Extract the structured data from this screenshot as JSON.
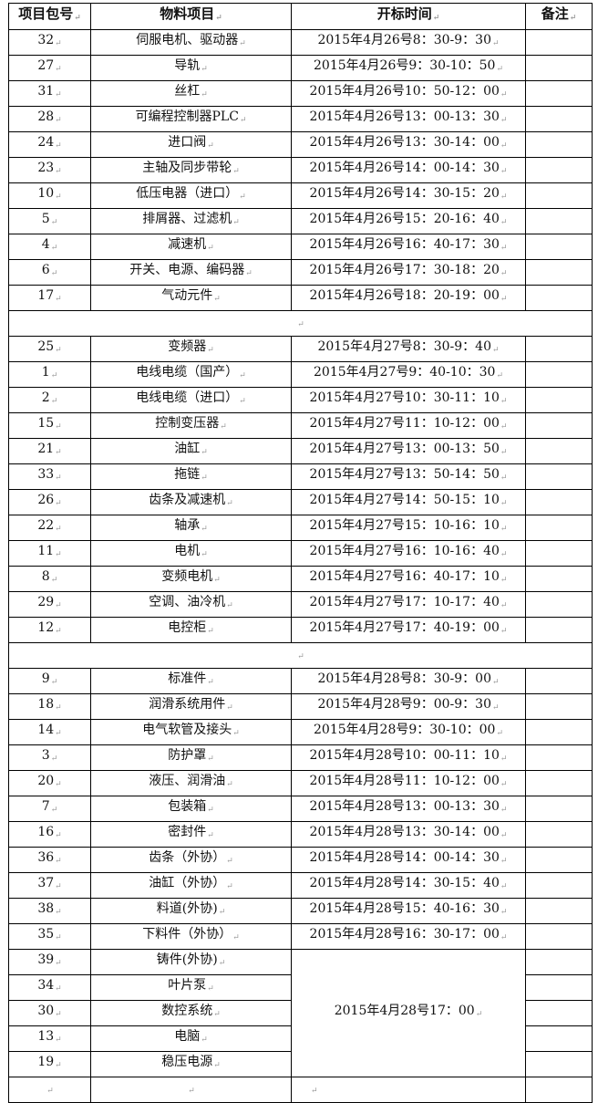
{
  "headers": [
    "项目包号",
    "物料项目",
    "开标时间",
    "备注"
  ],
  "groups": [
    {
      "rows": [
        {
          "no": "32",
          "item": "伺服电机、驱动器",
          "time": "2015年4月26号8：30-9：30"
        },
        {
          "no": "27",
          "item": "导轨",
          "time": "2015年4月26号9：30-10：50"
        },
        {
          "no": "31",
          "item": "丝杠",
          "time": "2015年4月26号10：50-12：00"
        },
        {
          "no": "28",
          "item": "可编程控制器PLC",
          "time": "2015年4月26号13：00-13：30"
        },
        {
          "no": "24",
          "item": "进口阀",
          "time": "2015年4月26号13：30-14：00"
        },
        {
          "no": "23",
          "item": "主轴及同步带轮",
          "time": "2015年4月26号14：00-14：30"
        },
        {
          "no": "10",
          "item": "低压电器（进口）",
          "time": "2015年4月26号14：30-15：20"
        },
        {
          "no": "5",
          "item": "排屑器、过滤机",
          "time": "2015年4月26号15：20-16：40"
        },
        {
          "no": "4",
          "item": "减速机",
          "time": "2015年4月26号16：40-17：30"
        },
        {
          "no": "6",
          "item": "开关、电源、编码器",
          "time": "2015年4月26号17：30-18：20"
        },
        {
          "no": "17",
          "item": "气动元件",
          "time": "2015年4月26号18：20-19：00"
        }
      ]
    },
    {
      "rows": [
        {
          "no": "25",
          "item": "变频器",
          "time": "2015年4月27号8：30-9：40"
        },
        {
          "no": "1",
          "item": "电线电缆（国产）",
          "time": "2015年4月27号9：40-10：30"
        },
        {
          "no": "2",
          "item": "电线电缆（进口）",
          "time": "2015年4月27号10：30-11：10"
        },
        {
          "no": "15",
          "item": "控制变压器",
          "time": "2015年4月27号11：10-12：00"
        },
        {
          "no": "21",
          "item": "油缸",
          "time": "2015年4月27号13：00-13：50"
        },
        {
          "no": "33",
          "item": "拖链",
          "time": "2015年4月27号13：50-14：50"
        },
        {
          "no": "26",
          "item": "齿条及减速机",
          "time": "2015年4月27号14：50-15：10"
        },
        {
          "no": "22",
          "item": "轴承",
          "time": "2015年4月27号15：10-16：10"
        },
        {
          "no": "11",
          "item": "电机",
          "time": "2015年4月27号16：10-16：40"
        },
        {
          "no": "8",
          "item": "变频电机",
          "time": "2015年4月27号16：40-17：10"
        },
        {
          "no": "29",
          "item": "空调、油冷机",
          "time": "2015年4月27号17：10-17：40"
        },
        {
          "no": "12",
          "item": "电控柜",
          "time": "2015年4月27号17：40-19：00"
        }
      ]
    },
    {
      "rows": [
        {
          "no": "9",
          "item": "标准件",
          "time": "2015年4月28号8：30-9：00"
        },
        {
          "no": "18",
          "item": "润滑系统用件",
          "time": "2015年4月28号9：00-9：30"
        },
        {
          "no": "14",
          "item": "电气软管及接头",
          "time": "2015年4月28号9：30-10：00"
        },
        {
          "no": "3",
          "item": "防护罩",
          "time": "2015年4月28号10：00-11：10"
        },
        {
          "no": "20",
          "item": "液压、润滑油",
          "time": "2015年4月28号11：10-12：00"
        },
        {
          "no": "7",
          "item": "包装箱",
          "time": "2015年4月28号13：00-13：30"
        },
        {
          "no": "16",
          "item": "密封件",
          "time": "2015年4月28号13：30-14：00"
        },
        {
          "no": "36",
          "item": "齿条（外协）",
          "time": "2015年4月28号14：00-14：30"
        },
        {
          "no": "37",
          "item": "油缸（外协）",
          "time": "2015年4月28号14：30-15：40"
        },
        {
          "no": "38",
          "item": "料道(外协)",
          "time": "2015年4月28号15：40-16：30"
        },
        {
          "no": "35",
          "item": "下料件（外协）",
          "time": "2015年4月28号16：30-17：00"
        }
      ],
      "merged": {
        "time": "2015年4月28号17：00",
        "rows": [
          {
            "no": "39",
            "item": "铸件(外协)"
          },
          {
            "no": "34",
            "item": "叶片泵"
          },
          {
            "no": "30",
            "item": "数控系统"
          },
          {
            "no": "13",
            "item": "电脑"
          },
          {
            "no": "19",
            "item": "稳压电源"
          }
        ]
      }
    }
  ]
}
